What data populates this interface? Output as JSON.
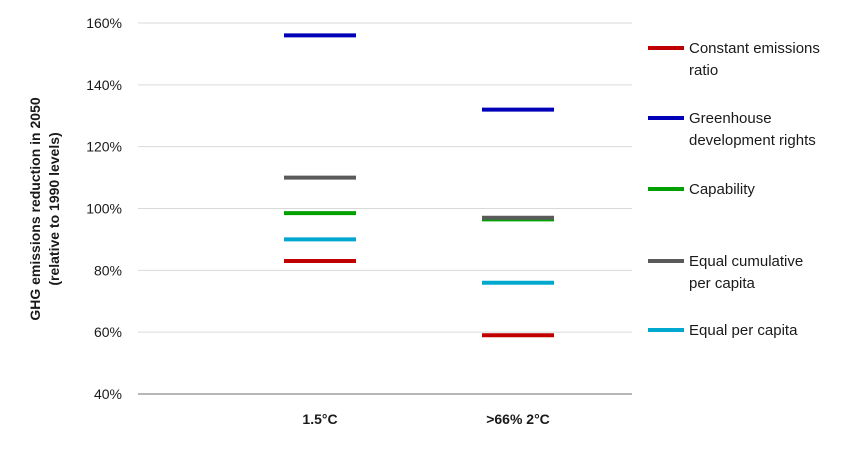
{
  "chart_data": {
    "type": "scatter",
    "marker": "horizontal-dash",
    "ylabel_lines": [
      "GHG emissions reduction in 2050",
      "(relative to 1990 levels)"
    ],
    "xlabel": "",
    "title": "",
    "categories": [
      "1.5°C",
      ">66% 2°C"
    ],
    "ylim": [
      40,
      160
    ],
    "yticks": [
      40,
      60,
      80,
      100,
      120,
      140,
      160
    ],
    "ytick_labels": [
      "40%",
      "60%",
      "80%",
      "100%",
      "120%",
      "140%",
      "160%"
    ],
    "grid": true,
    "legend_position": "right",
    "series": [
      {
        "name_lines": [
          "Constant emissions",
          "ratio"
        ],
        "color": "#c00000",
        "values": [
          83,
          59
        ]
      },
      {
        "name_lines": [
          "Greenhouse",
          "development rights"
        ],
        "color": "#0000b8",
        "values": [
          156,
          132
        ]
      },
      {
        "name_lines": [
          "Capability"
        ],
        "color": "#00a000",
        "values": [
          98.5,
          96.5
        ]
      },
      {
        "name_lines": [
          "Equal cumulative",
          "per capita"
        ],
        "color": "#5a5a5a",
        "values": [
          110,
          97
        ]
      },
      {
        "name_lines": [
          "Equal per capita"
        ],
        "color": "#00a8d0",
        "values": [
          90,
          76
        ]
      }
    ]
  }
}
